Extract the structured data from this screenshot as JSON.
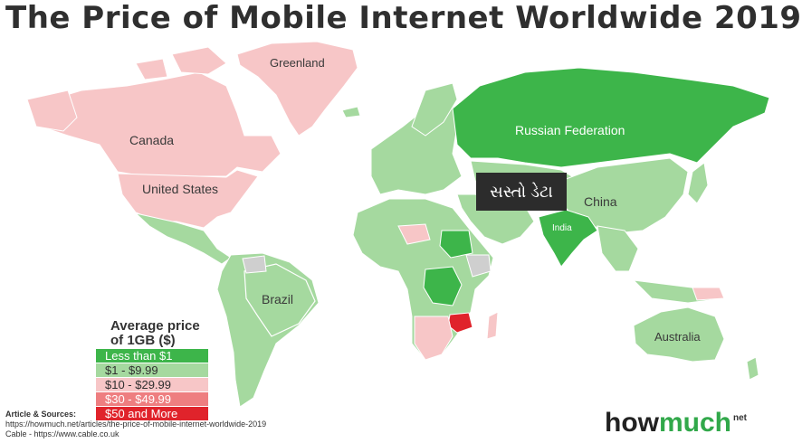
{
  "title": "The Price of Mobile Internet Worldwide 2019",
  "colors": {
    "less_than_1": "#3db54a",
    "1_to_9_99": "#a5d99f",
    "10_to_29_99": "#f7c6c7",
    "30_to_49_99": "#ee7e80",
    "50_and_more": "#e0232b",
    "no_data": "#cfcfcf"
  },
  "labels": {
    "greenland": "Greenland",
    "canada": "Canada",
    "united_states": "United States",
    "russia": "Russian Federation",
    "china": "China",
    "india": "India",
    "brazil": "Brazil",
    "australia": "Australia"
  },
  "overlay_tag": "સસ્તો ડેટા",
  "legend": {
    "title_line1": "Average price",
    "title_line2": "of 1GB ($)",
    "items": [
      {
        "label": "Less than $1",
        "color": "#3db54a",
        "text_color": "#ffffff"
      },
      {
        "label": "$1 - $9.99",
        "color": "#a5d99f",
        "text_color": "#2f2f2f"
      },
      {
        "label": "$10 - $29.99",
        "color": "#f7c6c7",
        "text_color": "#2f2f2f"
      },
      {
        "label": "$30 - $49.99",
        "color": "#ee7e80",
        "text_color": "#ffffff"
      },
      {
        "label": "$50 and More",
        "color": "#e0232b",
        "text_color": "#ffffff"
      }
    ]
  },
  "sources": {
    "heading": "Article & Sources:",
    "line1": "https://howmuch.net/articles/the-price-of-mobile-internet-worldwide-2019",
    "line2": "Cable - https://www.cable.co.uk"
  },
  "brand": {
    "part1": "how",
    "part2": "much",
    "suffix": "net"
  }
}
